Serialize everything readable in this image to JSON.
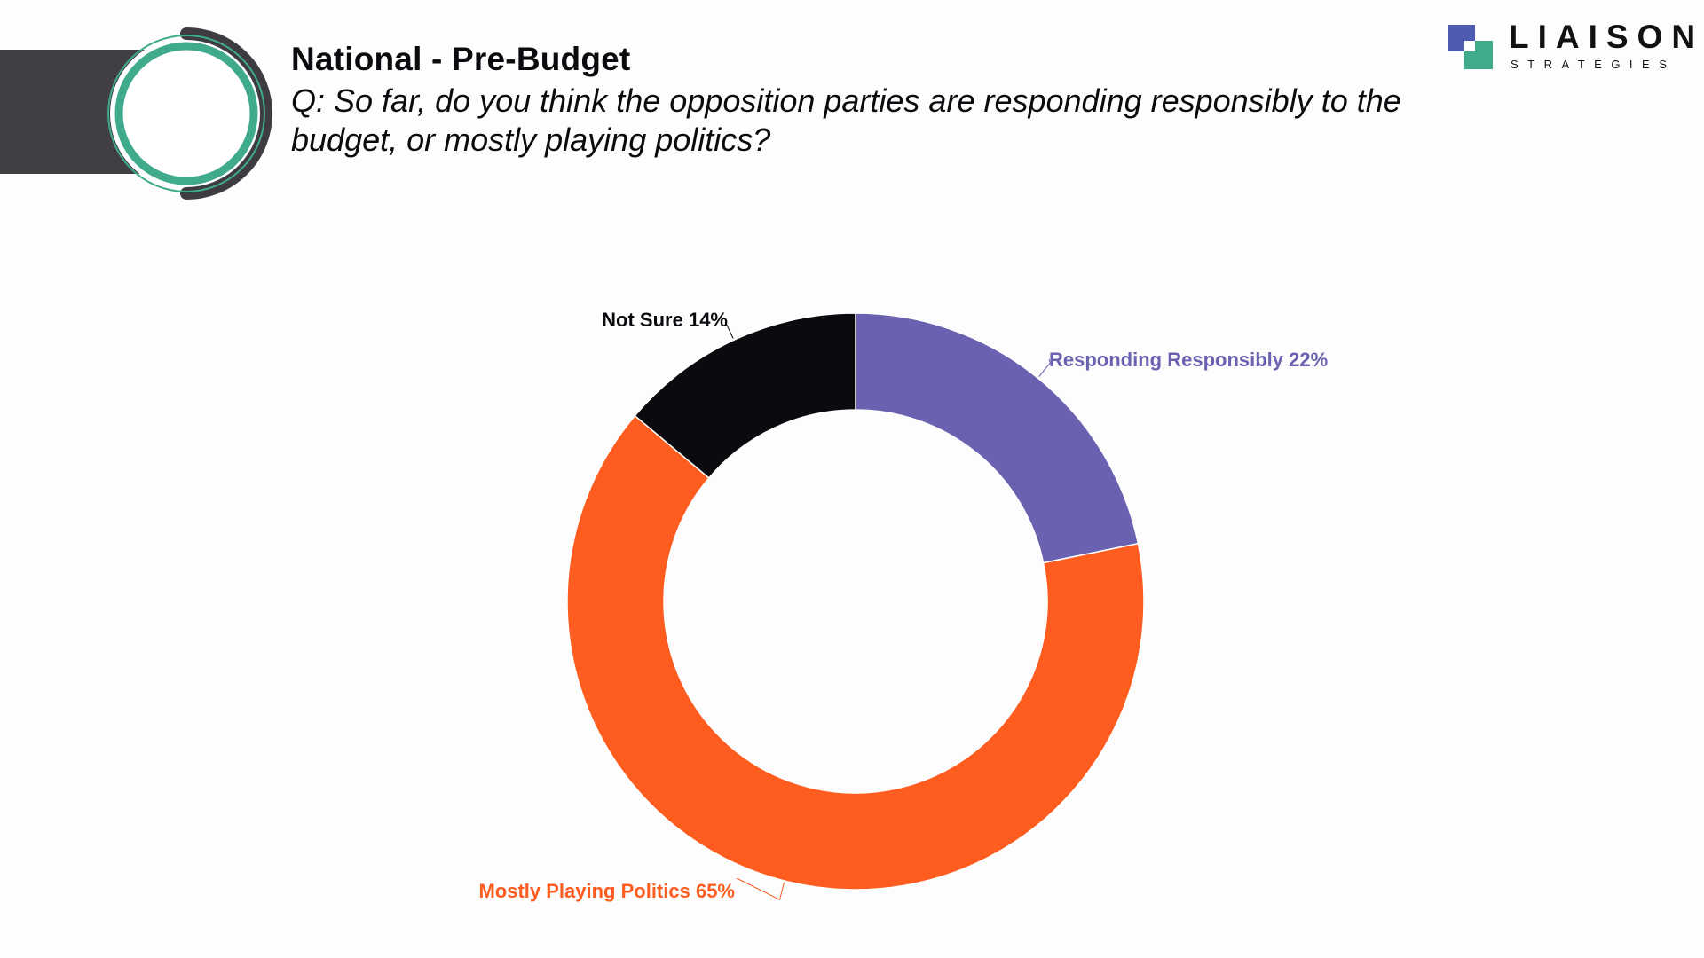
{
  "header": {
    "title": "National - Pre-Budget",
    "question": "Q: So far, do you think the opposition parties are responding responsibly to the budget, or mostly playing politics?"
  },
  "logo": {
    "word": "LIAISON",
    "sub": "STRATÉGIES"
  },
  "colors": {
    "header_bar": "#413f44",
    "ring_dark": "#3e3c41",
    "ring_green": "#3fab8c",
    "logo_blue": "#4f5bb0",
    "logo_green": "#3fab8c"
  },
  "chart_data": {
    "type": "pie",
    "donut": true,
    "slices": [
      {
        "label": "Responding Responsibly 22%",
        "value": 22,
        "color": "#6a62b0"
      },
      {
        "label": "Mostly Playing Politics 65%",
        "value": 65,
        "color": "#ff5c20"
      },
      {
        "label": "Not Sure 14%",
        "value": 14,
        "color": "#0b0b0f"
      }
    ]
  }
}
